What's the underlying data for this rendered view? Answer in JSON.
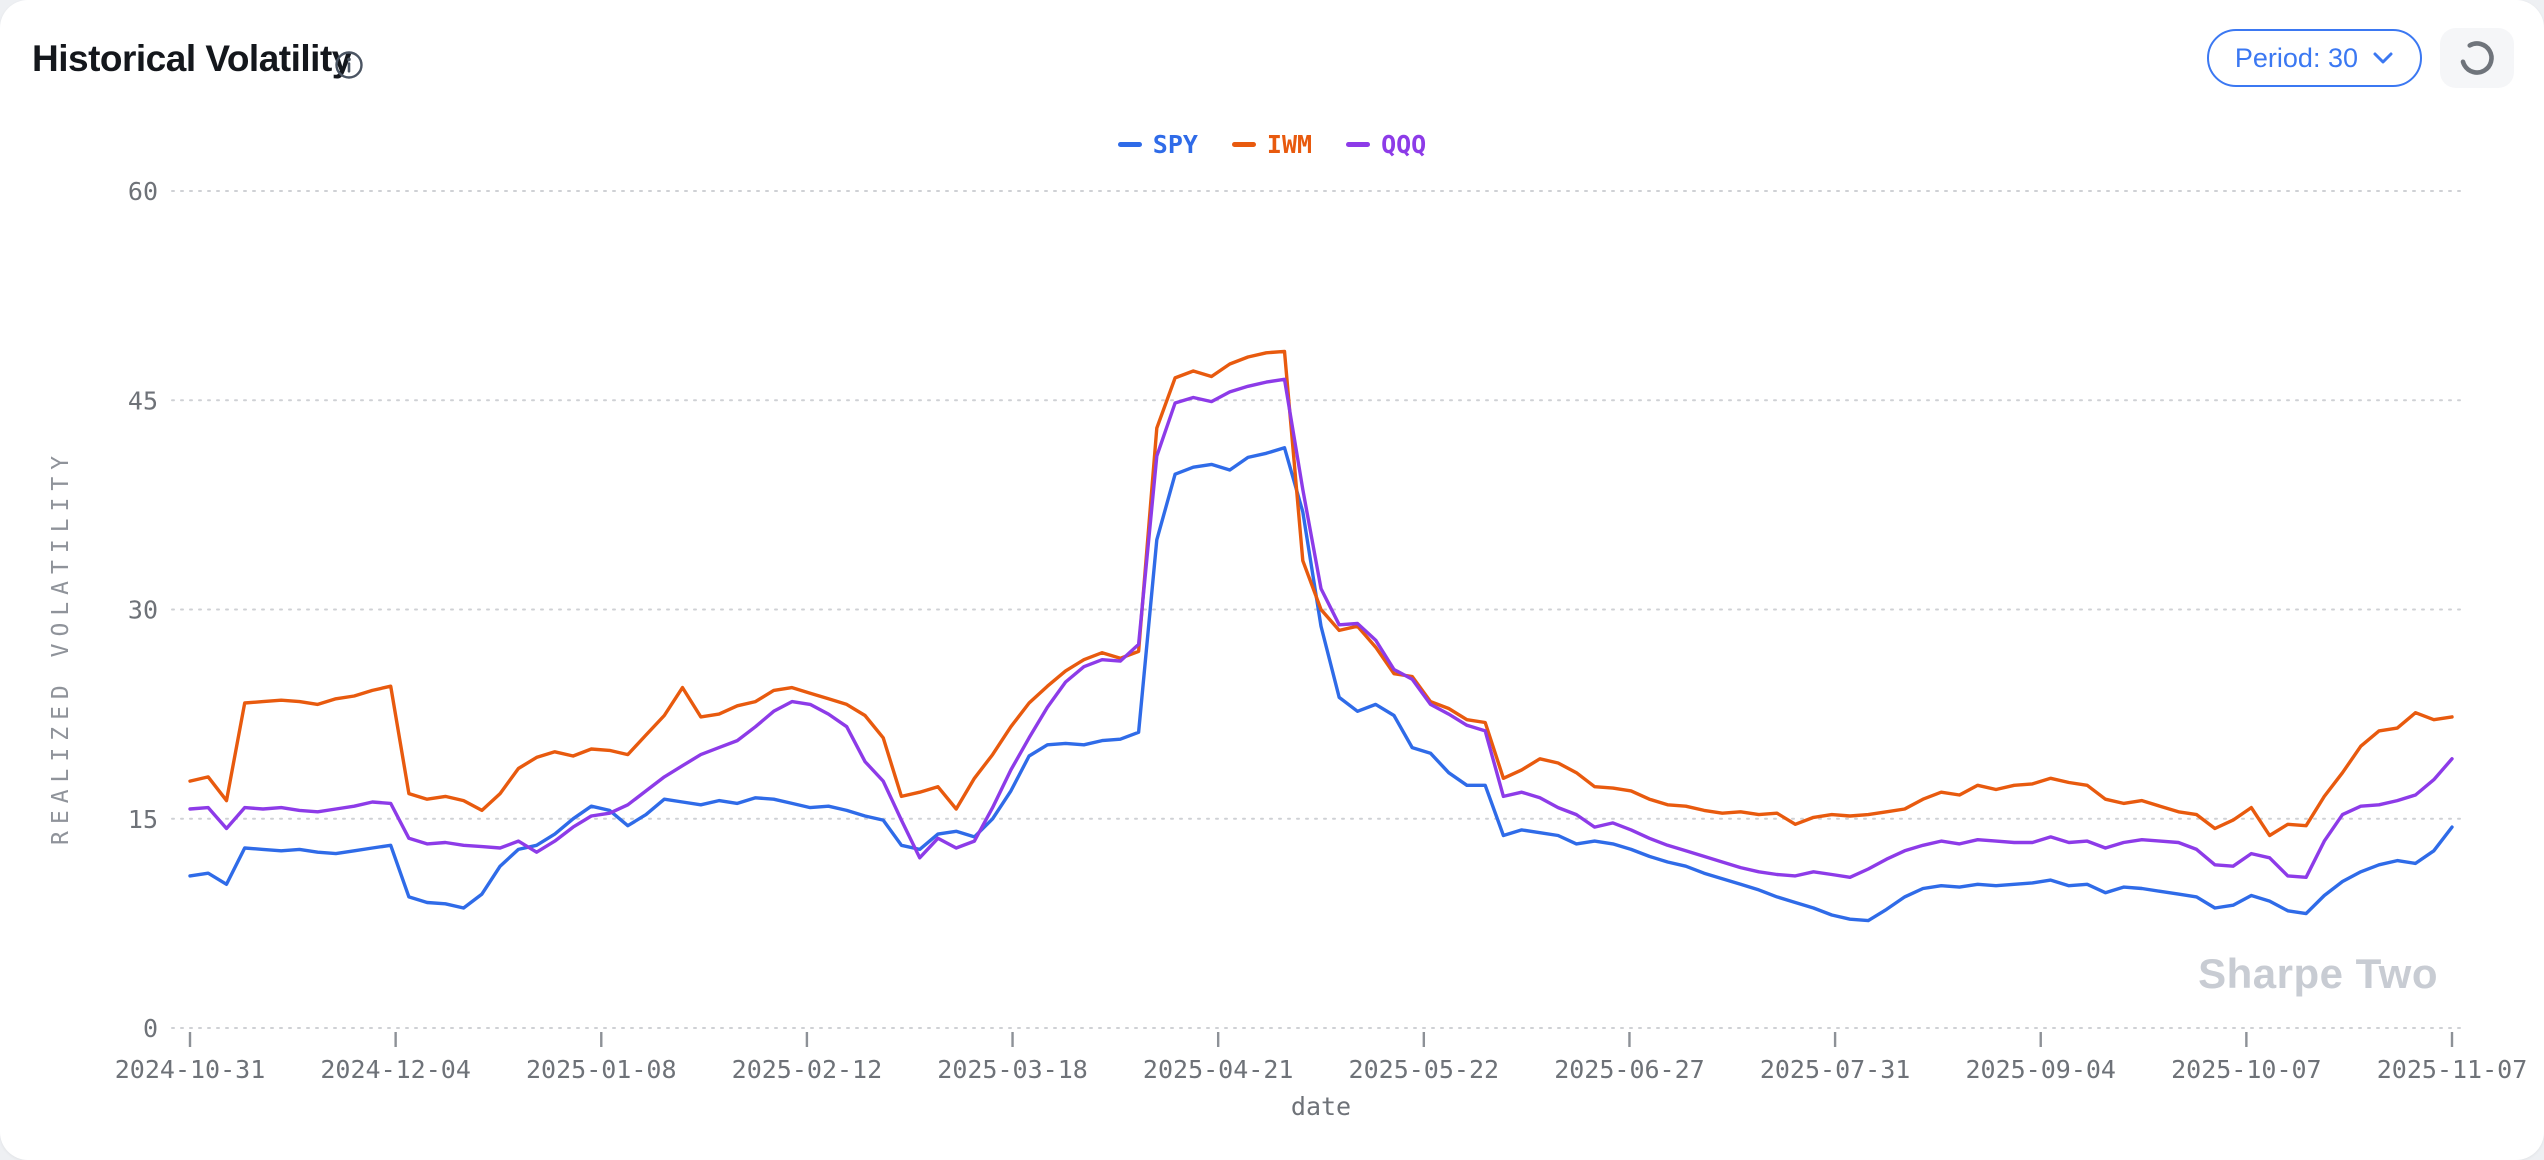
{
  "header": {
    "title": "Historical Volatility"
  },
  "controls": {
    "period_label": "Period: 30"
  },
  "watermark": "Sharpe Two",
  "chart_data": {
    "type": "line",
    "title": "Historical Volatility",
    "xlabel": "date",
    "ylabel": "REALIZED VOLATILITY",
    "ylim": [
      0,
      63
    ],
    "y_ticks": [
      0,
      15,
      30,
      45,
      60
    ],
    "grid": "horizontal-dotted",
    "legend_position": "top-center",
    "x_tick_labels": [
      "2024-10-31",
      "2024-12-04",
      "2025-01-08",
      "2025-02-12",
      "2025-03-18",
      "2025-04-21",
      "2025-05-22",
      "2025-06-27",
      "2025-07-31",
      "2025-09-04",
      "2025-10-07",
      "2025-11-07"
    ],
    "x_range": [
      "2024-10-31",
      "2025-11-07"
    ],
    "sample_interval_days": 3,
    "series": [
      {
        "name": "SPY",
        "color": "#2f6be8",
        "values": [
          10.9,
          11.1,
          10.3,
          12.9,
          12.8,
          12.7,
          12.8,
          12.6,
          12.5,
          12.7,
          12.9,
          13.1,
          9.4,
          9.0,
          8.9,
          8.6,
          9.6,
          11.6,
          12.8,
          13.1,
          13.9,
          15.0,
          15.9,
          15.6,
          14.5,
          15.3,
          16.4,
          16.2,
          16.0,
          16.3,
          16.1,
          16.5,
          16.4,
          16.1,
          15.8,
          15.9,
          15.6,
          15.2,
          14.9,
          13.1,
          12.8,
          13.9,
          14.1,
          13.7,
          15.0,
          17.0,
          19.5,
          20.3,
          20.4,
          20.3,
          20.6,
          20.7,
          21.2,
          35.0,
          39.7,
          40.2,
          40.4,
          40.0,
          40.9,
          41.2,
          41.6,
          37.0,
          28.8,
          23.7,
          22.7,
          23.2,
          22.4,
          20.1,
          19.7,
          18.3,
          17.4,
          17.4,
          13.8,
          14.2,
          14.0,
          13.8,
          13.2,
          13.4,
          13.2,
          12.8,
          12.3,
          11.9,
          11.6,
          11.1,
          10.7,
          10.3,
          9.9,
          9.4,
          9.0,
          8.6,
          8.1,
          7.8,
          7.7,
          8.5,
          9.4,
          10.0,
          10.2,
          10.1,
          10.3,
          10.2,
          10.3,
          10.4,
          10.6,
          10.2,
          10.3,
          9.7,
          10.1,
          10.0,
          9.8,
          9.6,
          9.4,
          8.6,
          8.8,
          9.5,
          9.1,
          8.4,
          8.2,
          9.5,
          10.5,
          11.2,
          11.7,
          12.0,
          11.8,
          12.7,
          14.4
        ]
      },
      {
        "name": "IWM",
        "color": "#e85a0e",
        "values": [
          17.7,
          18.0,
          16.3,
          23.3,
          23.4,
          23.5,
          23.4,
          23.2,
          23.6,
          23.8,
          24.2,
          24.5,
          16.8,
          16.4,
          16.6,
          16.3,
          15.6,
          16.8,
          18.6,
          19.4,
          19.8,
          19.5,
          20.0,
          19.9,
          19.6,
          21.0,
          22.4,
          24.4,
          22.3,
          22.5,
          23.1,
          23.4,
          24.2,
          24.4,
          24.0,
          23.6,
          23.2,
          22.4,
          20.8,
          16.6,
          16.9,
          17.3,
          15.7,
          17.9,
          19.6,
          21.6,
          23.3,
          24.5,
          25.6,
          26.4,
          26.9,
          26.5,
          27.0,
          43.0,
          46.6,
          47.1,
          46.7,
          47.6,
          48.1,
          48.4,
          48.5,
          33.5,
          30.0,
          28.5,
          28.8,
          27.3,
          25.4,
          25.2,
          23.4,
          22.9,
          22.1,
          21.9,
          17.9,
          18.5,
          19.3,
          19.0,
          18.3,
          17.3,
          17.2,
          17.0,
          16.4,
          16.0,
          15.9,
          15.6,
          15.4,
          15.5,
          15.3,
          15.4,
          14.6,
          15.1,
          15.3,
          15.2,
          15.3,
          15.5,
          15.7,
          16.4,
          16.9,
          16.7,
          17.4,
          17.1,
          17.4,
          17.5,
          17.9,
          17.6,
          17.4,
          16.4,
          16.1,
          16.3,
          15.9,
          15.5,
          15.3,
          14.3,
          14.9,
          15.8,
          13.8,
          14.6,
          14.5,
          16.6,
          18.3,
          20.2,
          21.3,
          21.5,
          22.6,
          22.1,
          22.3
        ]
      },
      {
        "name": "QQQ",
        "color": "#8d3be8",
        "values": [
          15.7,
          15.8,
          14.3,
          15.8,
          15.7,
          15.8,
          15.6,
          15.5,
          15.7,
          15.9,
          16.2,
          16.1,
          13.6,
          13.2,
          13.3,
          13.1,
          13.0,
          12.9,
          13.4,
          12.6,
          13.4,
          14.4,
          15.2,
          15.4,
          16.0,
          17.0,
          18.0,
          18.8,
          19.6,
          20.1,
          20.6,
          21.6,
          22.7,
          23.4,
          23.2,
          22.5,
          21.6,
          19.1,
          17.7,
          14.9,
          12.2,
          13.6,
          12.9,
          13.4,
          15.8,
          18.5,
          20.8,
          23.0,
          24.8,
          25.9,
          26.4,
          26.3,
          27.5,
          41.0,
          44.8,
          45.2,
          44.9,
          45.6,
          46.0,
          46.3,
          46.5,
          38.6,
          31.5,
          28.9,
          29.0,
          27.8,
          25.7,
          25.0,
          23.2,
          22.5,
          21.7,
          21.3,
          16.6,
          16.9,
          16.5,
          15.8,
          15.3,
          14.4,
          14.7,
          14.2,
          13.6,
          13.1,
          12.7,
          12.3,
          11.9,
          11.5,
          11.2,
          11.0,
          10.9,
          11.2,
          11.0,
          10.8,
          11.4,
          12.1,
          12.7,
          13.1,
          13.4,
          13.2,
          13.5,
          13.4,
          13.3,
          13.3,
          13.7,
          13.3,
          13.4,
          12.9,
          13.3,
          13.5,
          13.4,
          13.3,
          12.8,
          11.7,
          11.6,
          12.5,
          12.2,
          10.9,
          10.8,
          13.4,
          15.3,
          15.9,
          16.0,
          16.3,
          16.7,
          17.8,
          19.3
        ]
      }
    ]
  }
}
